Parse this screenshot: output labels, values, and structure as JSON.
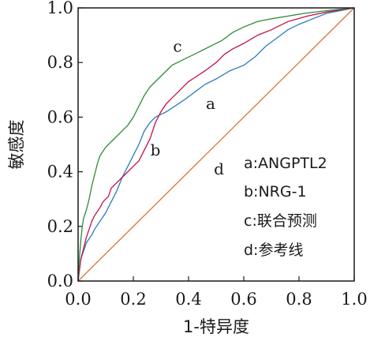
{
  "chart_data": {
    "type": "line",
    "xlabel": "1-特异度",
    "ylabel": "敏感度",
    "xlim": [
      0,
      1
    ],
    "ylim": [
      0,
      1
    ],
    "x_ticks": [
      "0.0",
      "0.2",
      "0.4",
      "0.6",
      "0.8",
      "1.0"
    ],
    "y_ticks": [
      "0.0",
      "0.2",
      "0.4",
      "0.6",
      "0.8",
      "1.0"
    ],
    "grid": false,
    "legend_position": "lower-right",
    "series": [
      {
        "name": "a:ANGPTL2",
        "label": "a",
        "color": "#c8104a",
        "points": [
          [
            0,
            0
          ],
          [
            0.003,
            0.03
          ],
          [
            0.01,
            0.08
          ],
          [
            0.02,
            0.12
          ],
          [
            0.03,
            0.16
          ],
          [
            0.04,
            0.19
          ],
          [
            0.05,
            0.22
          ],
          [
            0.06,
            0.24
          ],
          [
            0.08,
            0.27
          ],
          [
            0.09,
            0.29
          ],
          [
            0.11,
            0.31
          ],
          [
            0.12,
            0.34
          ],
          [
            0.14,
            0.36
          ],
          [
            0.16,
            0.38
          ],
          [
            0.18,
            0.4
          ],
          [
            0.2,
            0.42
          ],
          [
            0.22,
            0.44
          ],
          [
            0.24,
            0.48
          ],
          [
            0.26,
            0.52
          ],
          [
            0.28,
            0.58
          ],
          [
            0.3,
            0.62
          ],
          [
            0.32,
            0.65
          ],
          [
            0.34,
            0.67
          ],
          [
            0.36,
            0.69
          ],
          [
            0.38,
            0.71
          ],
          [
            0.4,
            0.73
          ],
          [
            0.43,
            0.75
          ],
          [
            0.46,
            0.77
          ],
          [
            0.5,
            0.8
          ],
          [
            0.53,
            0.83
          ],
          [
            0.56,
            0.85
          ],
          [
            0.6,
            0.87
          ],
          [
            0.65,
            0.9
          ],
          [
            0.7,
            0.92
          ],
          [
            0.76,
            0.95
          ],
          [
            0.83,
            0.97
          ],
          [
            0.9,
            0.985
          ],
          [
            1.0,
            1.0
          ]
        ]
      },
      {
        "name": "b:NRG-1",
        "label": "b",
        "color": "#2d7bbf",
        "points": [
          [
            0,
            0
          ],
          [
            0.005,
            0.04
          ],
          [
            0.01,
            0.08
          ],
          [
            0.02,
            0.11
          ],
          [
            0.03,
            0.14
          ],
          [
            0.05,
            0.17
          ],
          [
            0.06,
            0.19
          ],
          [
            0.08,
            0.22
          ],
          [
            0.1,
            0.25
          ],
          [
            0.12,
            0.29
          ],
          [
            0.14,
            0.33
          ],
          [
            0.16,
            0.38
          ],
          [
            0.18,
            0.42
          ],
          [
            0.2,
            0.46
          ],
          [
            0.22,
            0.5
          ],
          [
            0.24,
            0.55
          ],
          [
            0.26,
            0.58
          ],
          [
            0.28,
            0.6
          ],
          [
            0.3,
            0.61
          ],
          [
            0.32,
            0.62
          ],
          [
            0.35,
            0.64
          ],
          [
            0.38,
            0.66
          ],
          [
            0.42,
            0.69
          ],
          [
            0.46,
            0.72
          ],
          [
            0.5,
            0.74
          ],
          [
            0.55,
            0.77
          ],
          [
            0.6,
            0.79
          ],
          [
            0.64,
            0.82
          ],
          [
            0.68,
            0.86
          ],
          [
            0.72,
            0.89
          ],
          [
            0.76,
            0.92
          ],
          [
            0.8,
            0.94
          ],
          [
            0.85,
            0.96
          ],
          [
            0.9,
            0.98
          ],
          [
            0.95,
            0.99
          ],
          [
            1.0,
            1.0
          ]
        ]
      },
      {
        "name": "c:联合预测",
        "label": "c",
        "color": "#2f8a3a",
        "points": [
          [
            0,
            0
          ],
          [
            0.002,
            0.05
          ],
          [
            0.006,
            0.1
          ],
          [
            0.01,
            0.15
          ],
          [
            0.015,
            0.2
          ],
          [
            0.02,
            0.23
          ],
          [
            0.03,
            0.26
          ],
          [
            0.04,
            0.3
          ],
          [
            0.05,
            0.35
          ],
          [
            0.06,
            0.39
          ],
          [
            0.07,
            0.43
          ],
          [
            0.08,
            0.46
          ],
          [
            0.1,
            0.49
          ],
          [
            0.12,
            0.51
          ],
          [
            0.14,
            0.53
          ],
          [
            0.16,
            0.55
          ],
          [
            0.18,
            0.57
          ],
          [
            0.2,
            0.6
          ],
          [
            0.22,
            0.64
          ],
          [
            0.24,
            0.68
          ],
          [
            0.26,
            0.71
          ],
          [
            0.28,
            0.73
          ],
          [
            0.3,
            0.75
          ],
          [
            0.32,
            0.77
          ],
          [
            0.34,
            0.79
          ],
          [
            0.36,
            0.8
          ],
          [
            0.38,
            0.81
          ],
          [
            0.4,
            0.82
          ],
          [
            0.44,
            0.84
          ],
          [
            0.48,
            0.86
          ],
          [
            0.52,
            0.88
          ],
          [
            0.56,
            0.91
          ],
          [
            0.6,
            0.93
          ],
          [
            0.65,
            0.95
          ],
          [
            0.7,
            0.96
          ],
          [
            0.76,
            0.97
          ],
          [
            0.82,
            0.98
          ],
          [
            0.9,
            0.99
          ],
          [
            1.0,
            1.0
          ]
        ]
      },
      {
        "name": "d:参考线",
        "label": "d",
        "color": "#e2703a",
        "points": [
          [
            0,
            0
          ],
          [
            1,
            1
          ]
        ]
      }
    ],
    "curve_labels": [
      {
        "text": "c",
        "x": 0.36,
        "y": 0.84
      },
      {
        "text": "a",
        "x": 0.48,
        "y": 0.63
      },
      {
        "text": "b",
        "x": 0.28,
        "y": 0.46
      },
      {
        "text": "d",
        "x": 0.51,
        "y": 0.39
      }
    ],
    "legend": [
      "a:ANGPTL2",
      "b:NRG-1",
      "c:联合预测",
      "d:参考线"
    ]
  }
}
